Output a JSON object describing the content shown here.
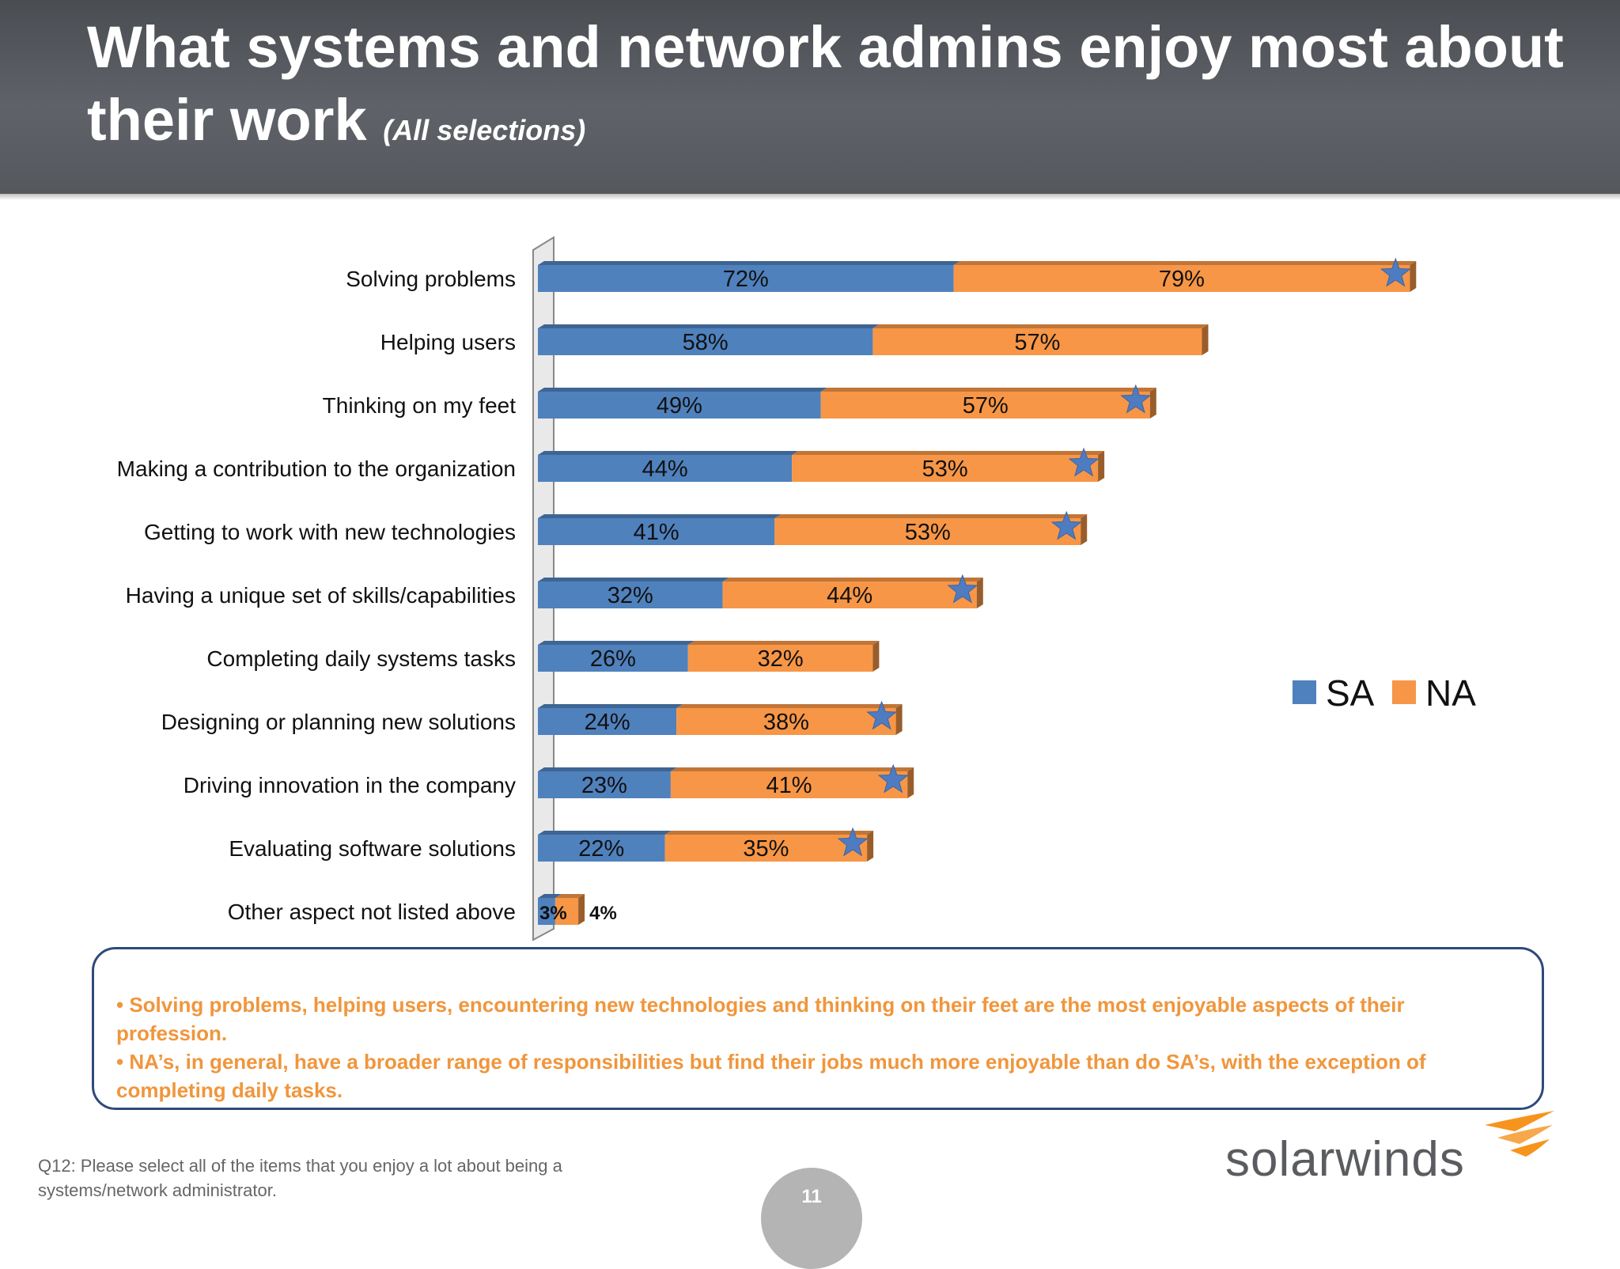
{
  "header": {
    "title": "What systems and network admins enjoy most about their work",
    "subtitle": "(All selections)"
  },
  "chart_data": {
    "type": "bar",
    "orientation": "horizontal",
    "stacked": true,
    "categories": [
      "Solving problems",
      "Helping users",
      "Thinking on my feet",
      "Making a contribution to the organization",
      "Getting to work with new technologies",
      "Having a unique set of skills/capabilities",
      "Completing daily systems tasks",
      "Designing or planning new solutions",
      "Driving innovation in the company",
      "Evaluating software solutions",
      "Other aspect not listed above"
    ],
    "series": [
      {
        "name": "SA",
        "color": "#4f81bd",
        "values": [
          72,
          58,
          49,
          44,
          41,
          32,
          26,
          24,
          23,
          22,
          3
        ],
        "labels": [
          "72%",
          "58%",
          "49%",
          "44%",
          "41%",
          "32%",
          "26%",
          "24%",
          "23%",
          "22%",
          "3%"
        ]
      },
      {
        "name": "NA",
        "color": "#f79646",
        "values": [
          79,
          57,
          57,
          53,
          53,
          44,
          32,
          38,
          41,
          35,
          4
        ],
        "labels": [
          "79%",
          "57%",
          "57%",
          "53%",
          "53%",
          "44%",
          "32%",
          "38%",
          "41%",
          "35%",
          "4%"
        ]
      }
    ],
    "star_marked": [
      true,
      false,
      true,
      true,
      true,
      true,
      false,
      true,
      true,
      true,
      false
    ],
    "legend": {
      "position": "right",
      "entries": [
        "SA",
        "NA"
      ]
    },
    "grid": false
  },
  "callout": {
    "lines": [
      "• Solving problems, helping users, encountering new technologies and thinking on their feet are the most enjoyable aspects of their profession.",
      "• NA’s, in general, have a broader range of responsibilities but find their jobs much more enjoyable than do SA’s, with the exception of completing daily tasks."
    ]
  },
  "footnote": "Q12: Please select all of the items that you enjoy a lot about being a systems/network administrator.",
  "page_number": "11",
  "logo": {
    "text": "solarwinds",
    "accent_color": "#f7941d"
  }
}
